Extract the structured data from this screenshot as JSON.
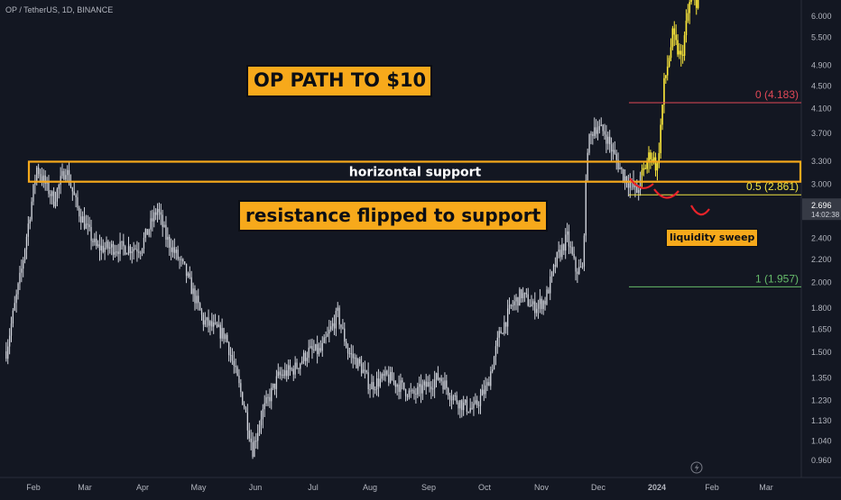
{
  "symbol_label": "OP / TetherUS, 1D, BINANCE",
  "colors": {
    "background": "#131722",
    "candle": "#d1d4dc",
    "projection": "#ffeb3b",
    "orange_zone": "#f7a91b",
    "fib_0": "#e04856",
    "fib_05": "#f0e442",
    "fib_1": "#66bb6a",
    "sweep_marks": "#e8232a",
    "price_tag": "#363a45"
  },
  "annotations": {
    "title": "OP PATH TO $10",
    "support_label": "horizontal support",
    "flip_label": "resistance flipped to support",
    "sweep_label": "liquidity sweep"
  },
  "fib_levels": [
    {
      "label": "0 (4.183)",
      "value": 4.183
    },
    {
      "label": "0.5 (2.861)",
      "value": 2.861
    },
    {
      "label": "1 (1.957)",
      "value": 1.957
    }
  ],
  "support_zone": {
    "low": 3.02,
    "high": 3.28
  },
  "current_price": {
    "value": 2.696,
    "price_text": "2.696",
    "countdown": "14:02:38"
  },
  "chart_data": {
    "type": "candlestick",
    "scale": "log",
    "symbol": "OP / TetherUS",
    "interval": "1D",
    "exchange": "BINANCE",
    "y_ticks": [
      "6.000",
      "5.500",
      "4.900",
      "4.500",
      "4.100",
      "3.700",
      "3.300",
      "3.000",
      "2.700",
      "2.400",
      "2.200",
      "2.000",
      "1.800",
      "1.650",
      "1.500",
      "1.350",
      "1.230",
      "1.130",
      "1.040",
      "0.960"
    ],
    "x_ticks": [
      "Feb",
      "Mar",
      "Apr",
      "May",
      "Jun",
      "Jul",
      "Aug",
      "Sep",
      "Oct",
      "Nov",
      "Dec",
      "2024",
      "Feb",
      "Mar"
    ],
    "series": [
      {
        "kind": "ohlc-estimated",
        "x": [
          "2023-01-16",
          "2023-01-25",
          "2023-02-03",
          "2023-02-13",
          "2023-02-20",
          "2023-02-27",
          "2023-03-10",
          "2023-03-20",
          "2023-03-28",
          "2023-04-05",
          "2023-04-15",
          "2023-04-20",
          "2023-05-01",
          "2023-05-12",
          "2023-05-25",
          "2023-06-05",
          "2023-06-10",
          "2023-06-15",
          "2023-06-25",
          "2023-07-05",
          "2023-07-13",
          "2023-07-20",
          "2023-07-30",
          "2023-08-05",
          "2023-08-13",
          "2023-08-18",
          "2023-08-28",
          "2023-09-05",
          "2023-09-12",
          "2023-09-20",
          "2023-09-28",
          "2023-10-05",
          "2023-10-12",
          "2023-10-18",
          "2023-10-26",
          "2023-11-02",
          "2023-11-09",
          "2023-11-15",
          "2023-11-22",
          "2023-11-29",
          "2023-12-06",
          "2023-12-12",
          "2023-12-17",
          "2023-12-21",
          "2023-12-24",
          "2023-12-28",
          "2024-01-03",
          "2024-01-08",
          "2024-01-14",
          "2024-01-18",
          "2024-01-22",
          "2024-01-25"
        ],
        "y": [
          1.5,
          2.1,
          3.2,
          2.8,
          3.2,
          2.7,
          2.3,
          2.3,
          2.3,
          2.3,
          2.7,
          2.4,
          2.1,
          1.7,
          1.6,
          1.2,
          1.0,
          1.15,
          1.35,
          1.4,
          1.5,
          1.5,
          1.75,
          1.5,
          1.4,
          1.3,
          1.35,
          1.3,
          1.25,
          1.3,
          1.35,
          1.25,
          1.2,
          1.18,
          1.3,
          1.6,
          1.8,
          1.9,
          1.8,
          1.85,
          2.2,
          2.4,
          2.1,
          2.1,
          3.5,
          3.8,
          3.7,
          3.4,
          3.1,
          3.0,
          2.9,
          3.1
        ]
      },
      {
        "kind": "projection",
        "x": [
          "2024-01-25",
          "2024-01-30",
          "2024-02-03",
          "2024-02-07",
          "2024-02-12",
          "2024-02-17",
          "2024-02-22",
          "2024-03-01"
        ],
        "y": [
          3.1,
          3.4,
          3.2,
          4.5,
          5.5,
          5.0,
          6.3,
          6.5
        ]
      }
    ]
  }
}
